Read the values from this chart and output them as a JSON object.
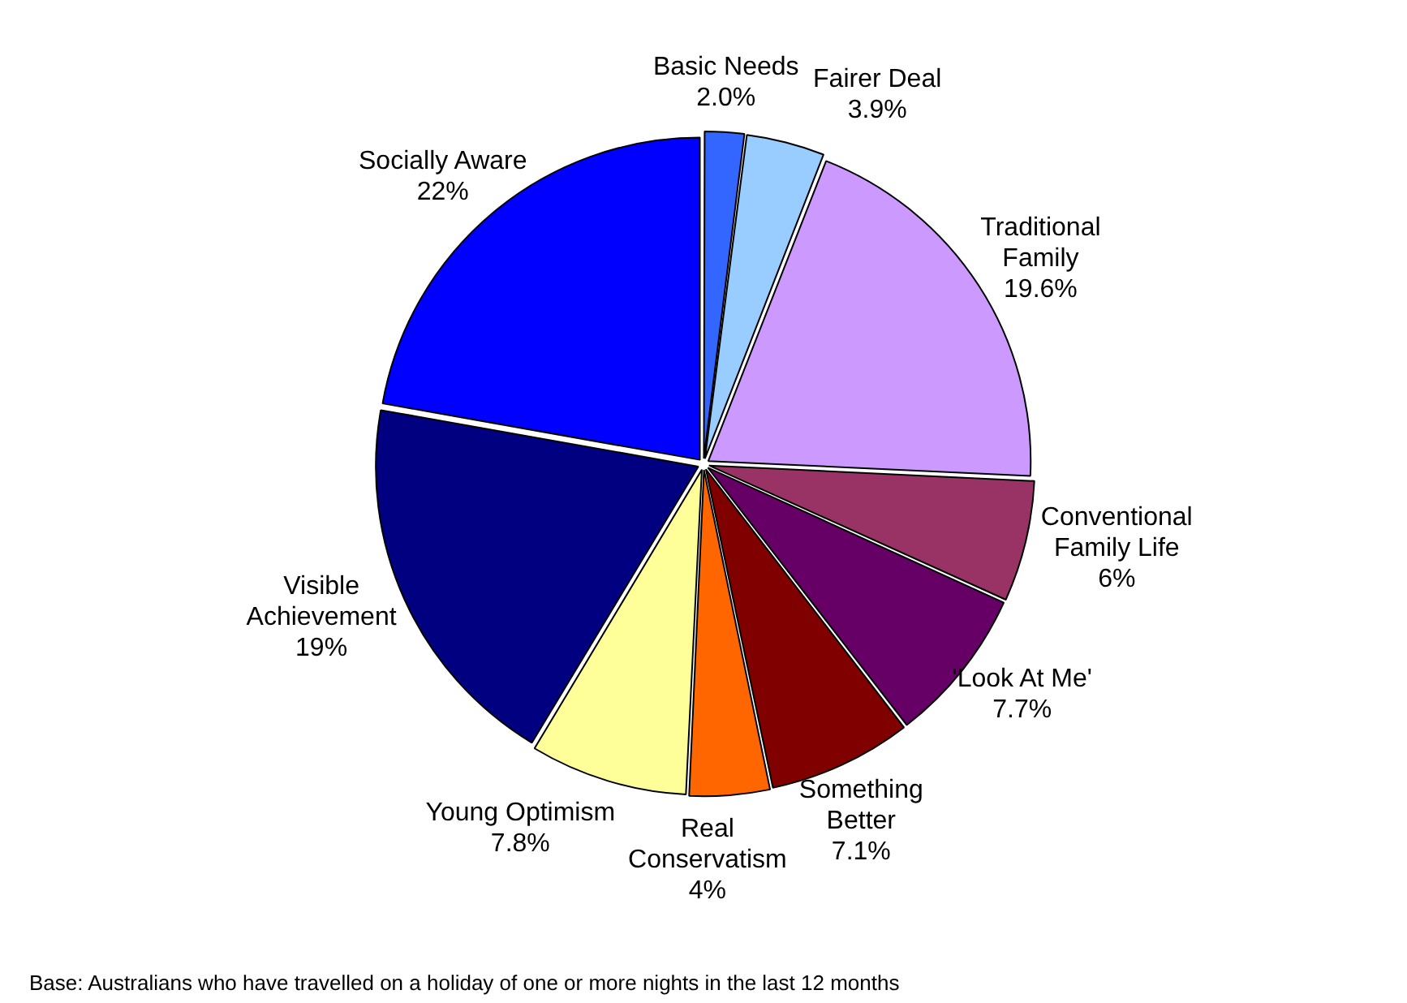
{
  "chart_data": {
    "type": "pie",
    "categories": [
      "Basic Needs",
      "Fairer Deal",
      "Traditional Family",
      "Conventional Family Life",
      "'Look At Me'",
      "Something Better",
      "Real Conservatism",
      "Young Optimism",
      "Visible Achievement",
      "Socially Aware"
    ],
    "values": [
      2.0,
      3.9,
      19.6,
      6,
      7.7,
      7.1,
      4,
      7.8,
      19,
      22
    ],
    "value_labels": [
      "2.0%",
      "3.9%",
      "19.6%",
      "6%",
      "7.7%",
      "7.1%",
      "4%",
      "7.8%",
      "19%",
      "22%"
    ],
    "colors": [
      "#3366ff",
      "#99ccff",
      "#cc99ff",
      "#993366",
      "#660066",
      "#800000",
      "#ff6600",
      "#ffff99",
      "#000080",
      "#0000ff"
    ],
    "legend": false,
    "annotations": [
      "Base: Australians  who have travelled on a holiday of one or more nights in the last 12 months"
    ]
  }
}
